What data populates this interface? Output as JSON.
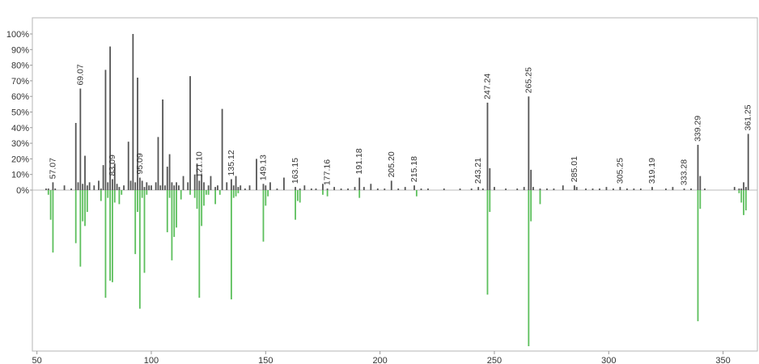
{
  "chart_data": {
    "type": "bar",
    "title": "",
    "xlabel": "",
    "ylabel": "",
    "xlim": [
      48,
      365
    ],
    "ylim": [
      -100,
      100
    ],
    "x_ticks": [
      "50",
      "100",
      "150",
      "200",
      "250",
      "300",
      "350"
    ],
    "y_ticks": [
      "0%",
      "10%",
      "20%",
      "30%",
      "40%",
      "50%",
      "60%",
      "70%",
      "80%",
      "90%",
      "100%"
    ],
    "grid": false,
    "legend": "none",
    "colors": {
      "upper": "#555555",
      "lower": "#5cbf5c",
      "axis": "#999999",
      "label": "#333333"
    },
    "series": [
      {
        "x": [
          54,
          55,
          57,
          58,
          62,
          65,
          67,
          68,
          69,
          70,
          71,
          72,
          73,
          75,
          77,
          78,
          79,
          80,
          81,
          82,
          83,
          84,
          85,
          86,
          88,
          90,
          91,
          92,
          93,
          94,
          95,
          96,
          97,
          98,
          99,
          100,
          102,
          103,
          104,
          105,
          106,
          107,
          108,
          109,
          110,
          111,
          112,
          114,
          116,
          117,
          119,
          120,
          121,
          122,
          123,
          125,
          126,
          128,
          129,
          131,
          133,
          135,
          136,
          137,
          138,
          139,
          141,
          143,
          146,
          149,
          150,
          152,
          155,
          158,
          163,
          165,
          167,
          170,
          172,
          175,
          177,
          180,
          183,
          186,
          189,
          191,
          193,
          196,
          199,
          202,
          205,
          208,
          211,
          215,
          218,
          221,
          228,
          235,
          240,
          243,
          245,
          247,
          248,
          250,
          255,
          260,
          263,
          265,
          266,
          267,
          270,
          273,
          276,
          280,
          285,
          286,
          290,
          293,
          296,
          299,
          302,
          305,
          308,
          311,
          314,
          319,
          325,
          328,
          333,
          336,
          339,
          340,
          342,
          355,
          357,
          358,
          359,
          360,
          361
        ],
        "values": [
          1,
          1,
          5,
          1,
          3,
          1,
          43,
          5,
          65,
          4,
          22,
          3,
          5,
          3,
          6,
          1,
          16,
          77,
          5,
          92,
          7,
          17,
          4,
          2,
          3,
          31,
          6,
          100,
          5,
          72,
          8,
          6,
          2,
          5,
          3,
          3,
          5,
          34,
          3,
          58,
          3,
          15,
          23,
          5,
          3,
          5,
          3,
          9,
          5,
          73,
          10,
          17,
          6,
          10,
          5,
          3,
          9,
          2,
          3,
          52,
          5,
          7,
          3,
          9,
          2,
          3,
          1,
          3,
          20,
          4,
          3,
          5,
          1,
          8,
          2,
          1,
          3,
          1,
          1,
          4,
          1,
          2,
          1,
          1,
          2,
          8,
          2,
          4,
          1,
          1,
          6,
          1,
          2,
          3,
          1,
          1,
          1,
          1,
          1,
          2,
          1,
          56,
          14,
          2,
          1,
          1,
          2,
          60,
          13,
          2,
          1,
          1,
          1,
          3,
          3,
          2,
          1,
          1,
          1,
          2,
          1,
          2,
          1,
          1,
          1,
          2,
          1,
          2,
          1,
          1,
          29,
          9,
          1,
          2,
          1,
          1,
          5,
          2,
          36
        ]
      },
      {
        "x": [
          55,
          56,
          57,
          67,
          69,
          70,
          71,
          72,
          78,
          80,
          81,
          82,
          83,
          84,
          86,
          87,
          93,
          94,
          95,
          96,
          97,
          98,
          107,
          108,
          109,
          110,
          111,
          113,
          117,
          119,
          120,
          121,
          122,
          123,
          124,
          125,
          128,
          130,
          135,
          136,
          137,
          138,
          149,
          150,
          151,
          163,
          164,
          165,
          175,
          177,
          191,
          216,
          247,
          248,
          265,
          266,
          270,
          339,
          340,
          357,
          358,
          359,
          360
        ],
        "values": [
          -3,
          -19,
          -40,
          -34,
          -49,
          -20,
          -23,
          -14,
          -7,
          -69,
          -5,
          -58,
          -59,
          -8,
          -9,
          -3,
          -41,
          -14,
          -76,
          -5,
          -53,
          -3,
          -27,
          -5,
          -45,
          -30,
          -24,
          -6,
          -3,
          -5,
          -12,
          -69,
          -23,
          -10,
          -3,
          -3,
          -9,
          -3,
          -70,
          -5,
          -4,
          -2,
          -33,
          -10,
          -4,
          -19,
          -7,
          -8,
          -3,
          -4,
          -5,
          -4,
          -67,
          -14,
          -100,
          -20,
          -9,
          -84,
          -12,
          -2,
          -8,
          -16,
          -13
        ]
      }
    ],
    "peak_labels": [
      {
        "x": 57,
        "text": "57.07"
      },
      {
        "x": 69,
        "text": "69.07"
      },
      {
        "x": 83,
        "text": "83.09"
      },
      {
        "x": 95,
        "text": "95.09"
      },
      {
        "x": 121,
        "text": "121.10"
      },
      {
        "x": 135,
        "text": "135.12"
      },
      {
        "x": 149,
        "text": "149.13"
      },
      {
        "x": 163,
        "text": "163.15"
      },
      {
        "x": 177,
        "text": "177.16"
      },
      {
        "x": 191,
        "text": "191.18"
      },
      {
        "x": 205,
        "text": "205.20"
      },
      {
        "x": 215,
        "text": "215.18"
      },
      {
        "x": 243,
        "text": "243.21"
      },
      {
        "x": 247,
        "text": "247.24"
      },
      {
        "x": 265,
        "text": "265.25"
      },
      {
        "x": 285,
        "text": "285.01"
      },
      {
        "x": 305,
        "text": "305.25"
      },
      {
        "x": 319,
        "text": "319.19"
      },
      {
        "x": 333,
        "text": "333.28"
      },
      {
        "x": 339,
        "text": "339.29"
      },
      {
        "x": 361,
        "text": "361.25"
      }
    ]
  }
}
